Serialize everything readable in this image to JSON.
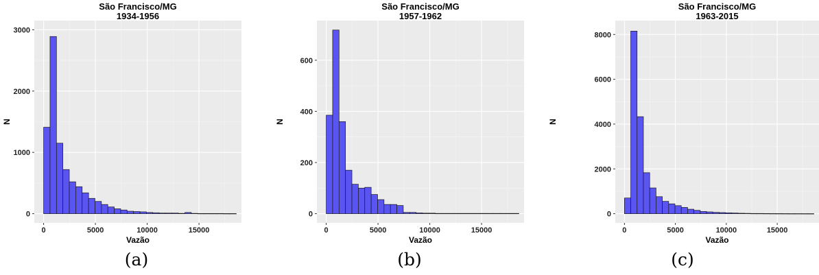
{
  "captions": [
    "(a)",
    "(b)",
    "(c)"
  ],
  "chart_data": [
    {
      "type": "bar",
      "title": "São Francisco/MG",
      "subtitle": "1934-1956",
      "xlabel": "Vazão",
      "ylabel": "N",
      "xlim": [
        -900,
        19100
      ],
      "ylim": [
        -150,
        3150
      ],
      "xticks": [
        0,
        5000,
        10000,
        15000
      ],
      "yticks": [
        0,
        1000,
        2000,
        3000
      ],
      "bin_width": 620,
      "bin_start": 0,
      "values": [
        1410,
        2890,
        1150,
        720,
        520,
        440,
        340,
        250,
        200,
        150,
        110,
        80,
        60,
        40,
        35,
        30,
        20,
        15,
        10,
        10,
        10,
        5,
        20,
        5,
        3,
        3,
        3,
        3,
        2,
        2
      ],
      "bar_color": "#5a55f2",
      "grid": true
    },
    {
      "type": "bar",
      "title": "São Francisco/MG",
      "subtitle": "1957-1962",
      "xlabel": "Vazão",
      "ylabel": "N",
      "xlim": [
        -900,
        19100
      ],
      "ylim": [
        -36,
        755
      ],
      "xticks": [
        0,
        5000,
        10000,
        15000
      ],
      "yticks": [
        0,
        200,
        400,
        600
      ],
      "bin_width": 620,
      "bin_start": 0,
      "values": [
        385,
        718,
        360,
        170,
        115,
        100,
        103,
        75,
        55,
        36,
        36,
        32,
        5,
        5,
        3,
        2,
        2,
        1,
        1,
        1,
        1,
        1,
        1,
        1,
        1,
        1,
        1,
        1,
        1,
        1
      ],
      "bar_color": "#5a55f2",
      "grid": true
    },
    {
      "type": "bar",
      "title": "São Francisco/MG",
      "subtitle": "1963-2015",
      "xlabel": "Vazão",
      "ylabel": "N",
      "xlim": [
        -900,
        19100
      ],
      "ylim": [
        -410,
        8620
      ],
      "xticks": [
        0,
        5000,
        10000,
        15000
      ],
      "yticks": [
        0,
        2000,
        4000,
        6000,
        8000
      ],
      "bin_width": 620,
      "bin_start": 0,
      "values": [
        700,
        8150,
        4330,
        1830,
        1150,
        760,
        550,
        440,
        360,
        280,
        200,
        150,
        100,
        80,
        60,
        50,
        40,
        30,
        20,
        15,
        10,
        10,
        8,
        6,
        5,
        4,
        3,
        3,
        2,
        2
      ],
      "bar_color": "#5a55f2",
      "grid": true
    }
  ]
}
